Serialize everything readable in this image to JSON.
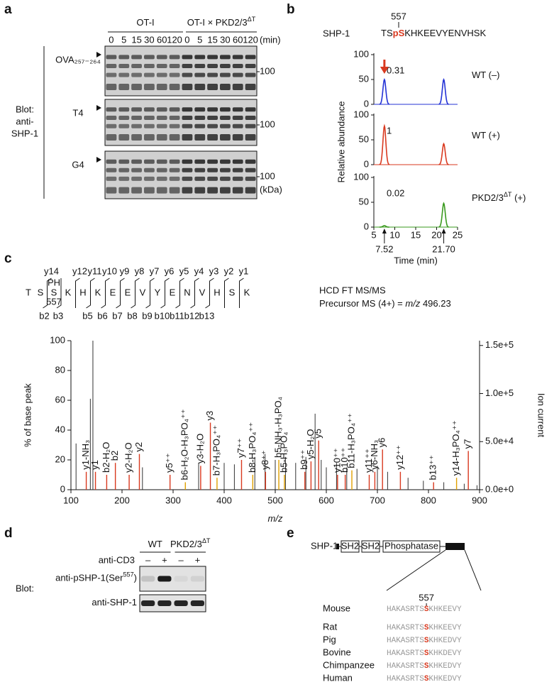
{
  "panel_a": {
    "label": "a",
    "groups": [
      [
        "OT-I"
      ],
      [
        "OT-I × PKD2/3",
        {
          "sup": "ΔT"
        }
      ]
    ],
    "times": [
      0,
      5,
      15,
      30,
      60,
      120
    ],
    "time_unit": "(min)",
    "blot_label": [
      "Blot:",
      "anti-",
      "SHP-1"
    ],
    "peptides": [
      "OVA₂₅₇₋₂₆₄",
      "T4",
      "G4"
    ],
    "marker": 100,
    "marker_unit": "(kDa)"
  },
  "panel_b": {
    "label": "b",
    "site": 557,
    "protein": "SHP-1",
    "sequence": [
      "TS",
      {
        "red": "pS"
      },
      "KHKEEVYENVHSK"
    ],
    "ylabel": "Relative abundance",
    "xlabel": "Time (min)",
    "xlim": [
      5,
      25
    ],
    "xticks": [
      5,
      10,
      15,
      20,
      25
    ],
    "ylim": [
      0,
      100
    ],
    "yticks": [
      0,
      50,
      100
    ],
    "traces": [
      {
        "name": [
          "WT (–)"
        ],
        "color": "#2433d6",
        "ratio": 0.31,
        "peaks": [
          {
            "time": 7.52,
            "height": 50
          },
          {
            "time": 21.7,
            "height": 50
          }
        ]
      },
      {
        "name": [
          "WT (+)"
        ],
        "color": "#d9391f",
        "ratio": 1,
        "peaks": [
          {
            "time": 7.52,
            "height": 78
          },
          {
            "time": 21.7,
            "height": 42
          }
        ]
      },
      {
        "name": [
          "PKD2/3",
          {
            "sup": "ΔT"
          },
          " (+)"
        ],
        "color": "#3a9a1e",
        "ratio": 0.02,
        "peaks": [
          {
            "time": 7.52,
            "height": 3
          },
          {
            "time": 21.7,
            "height": 48
          }
        ]
      }
    ],
    "markers": [
      {
        "value": 7.52,
        "label": "7.52"
      },
      {
        "value": 21.7,
        "label": "21.70"
      }
    ]
  },
  "panel_c": {
    "label": "c",
    "residues": [
      "T",
      "S",
      "S",
      "K",
      "H",
      "K",
      "E",
      "E",
      "V",
      "Y",
      "E",
      "N",
      "V",
      "H",
      "S",
      "K"
    ],
    "phospho_mark": "PH",
    "site": 557,
    "y_ions": [
      null,
      "y14",
      null,
      "y12",
      "y11",
      "y10",
      "y9",
      "y8",
      "y7",
      "y6",
      "y5",
      "y4",
      "y3",
      "y2",
      "y1"
    ],
    "b_ions": [
      null,
      "b2",
      "b3",
      null,
      "b5",
      "b6",
      "b7",
      "b8",
      "b9",
      "b10",
      "b11",
      "b12",
      "b13",
      null,
      null
    ],
    "method": "HCD FT MS/MS",
    "precursor": [
      "Precursor MS (4+) = ",
      {
        "i": "m/z"
      },
      " 496.23"
    ],
    "chart": {
      "type": "bar",
      "xlabel": [
        {
          "i": "m/z"
        }
      ],
      "ylabel": "% of base peak",
      "y2label": "Ion current",
      "xlim": [
        100,
        900
      ],
      "xticks": [
        100,
        200,
        300,
        400,
        500,
        600,
        700,
        800,
        900
      ],
      "ylim": [
        0,
        100
      ],
      "yticks": [
        0,
        20,
        40,
        60,
        80,
        100
      ],
      "y2lim": [
        0,
        155000
      ],
      "y2ticks": [
        {
          "value": 0,
          "label": "0.0e+0"
        },
        {
          "value": 50000,
          "label": "5.0e+4"
        },
        {
          "value": 100000,
          "label": "1.0e+5"
        },
        {
          "value": 150000,
          "label": "1.5e+5"
        }
      ],
      "unlabeled": {
        "color": "#333333",
        "mz": [
          110,
          138,
          143,
          240,
          350,
          400,
          420,
          460,
          480,
          500,
          520,
          540,
          560,
          578,
          590,
          600,
          620,
          640,
          660,
          700,
          720,
          760,
          790,
          830,
          870,
          895
        ],
        "values": [
          31,
          61,
          100,
          15,
          18,
          18,
          17,
          22,
          24,
          20,
          22,
          18,
          22,
          51,
          20,
          15,
          18,
          15,
          14,
          16,
          12,
          8,
          6,
          5,
          4,
          3
        ]
      },
      "ions": [
        {
          "mz": 130,
          "value": 12,
          "label": "y1-NH₃",
          "color": "#d9391f"
        },
        {
          "mz": 148,
          "value": 12,
          "label": "y1",
          "color": "#d9391f"
        },
        {
          "mz": 170,
          "value": 10,
          "label": "b2-H₂O",
          "color": "#d9391f"
        },
        {
          "mz": 187,
          "value": 18,
          "label": "b2",
          "color": "#d9391f"
        },
        {
          "mz": 214,
          "value": 10,
          "label": "y2-H₂O",
          "color": "#d9391f"
        },
        {
          "mz": 234,
          "value": 24,
          "label": "y2",
          "color": "#d9391f"
        },
        {
          "mz": 294,
          "value": 10,
          "label": "y5⁺⁺",
          "color": "#d9391f"
        },
        {
          "mz": 324,
          "value": 5,
          "label": "b6-H₂O-H₃PO₄⁺⁺",
          "color": "#e0a000"
        },
        {
          "mz": 354,
          "value": 16,
          "label": "y3-H₂O",
          "color": "#d9391f"
        },
        {
          "mz": 373,
          "value": 45,
          "label": "y3",
          "color": "#d9391f"
        },
        {
          "mz": 386,
          "value": 8,
          "label": "b7-H₃PO₄⁺⁺",
          "color": "#e0a000"
        },
        {
          "mz": 434,
          "value": 20,
          "label": "y7⁺⁺",
          "color": "#d9391f"
        },
        {
          "mz": 456,
          "value": 10,
          "label": "b8-H₃PO₄⁺⁺",
          "color": "#e0a000"
        },
        {
          "mz": 481,
          "value": 12,
          "label": "y8⁺⁺",
          "color": "#d9391f"
        },
        {
          "mz": 507,
          "value": 20,
          "label": "b5-NH₃-H₃PO₄",
          "color": "#e0a000"
        },
        {
          "mz": 518,
          "value": 10,
          "label": "b5-H₃PO₄",
          "color": "#e0a000"
        },
        {
          "mz": 558,
          "value": 12,
          "label": "b9⁺⁺",
          "color": "#d9391f"
        },
        {
          "mz": 570,
          "value": 19,
          "label": "y5-H₂O",
          "color": "#d9391f"
        },
        {
          "mz": 585,
          "value": 33,
          "label": "y5",
          "color": "#d9391f"
        },
        {
          "mz": 622,
          "value": 10,
          "label": "y10⁺⁺",
          "color": "#d9391f"
        },
        {
          "mz": 637,
          "value": 10,
          "label": "b10⁺⁺",
          "color": "#d9391f"
        },
        {
          "mz": 650,
          "value": 13,
          "label": "b11-H₃PO₄⁺⁺",
          "color": "#e0a000"
        },
        {
          "mz": 684,
          "value": 10,
          "label": "y11⁺⁺",
          "color": "#d9391f"
        },
        {
          "mz": 695,
          "value": 12,
          "label": "y6-NH₃",
          "color": "#d9391f"
        },
        {
          "mz": 710,
          "value": 27,
          "label": "y6",
          "color": "#d9391f"
        },
        {
          "mz": 745,
          "value": 12,
          "label": "y12⁺⁺",
          "color": "#d9391f"
        },
        {
          "mz": 810,
          "value": 5,
          "label": "b13⁺⁺",
          "color": "#d9391f"
        },
        {
          "mz": 855,
          "value": 8,
          "label": "y14-H₃PO₄⁺⁺",
          "color": "#e0a000"
        },
        {
          "mz": 878,
          "value": 26,
          "label": "y7",
          "color": "#d9391f"
        }
      ]
    }
  },
  "panel_d": {
    "label": "d",
    "groups": [
      [
        "WT"
      ],
      [
        "PKD2/3",
        {
          "sup": "ΔT"
        }
      ]
    ],
    "treatment": "anti-CD3",
    "signs": [
      "–",
      "+",
      "–",
      "+"
    ],
    "blot": "Blot:",
    "rows": [
      [
        "anti-pSHP-1(Ser",
        {
          "sup": "557"
        },
        ")"
      ],
      [
        "anti-SHP-1"
      ]
    ]
  },
  "panel_e": {
    "label": "e",
    "protein": "SHP-1",
    "domains": [
      "SH2",
      "SH2",
      "Phosphatase"
    ],
    "site": 557,
    "species": [
      {
        "name": "Mouse",
        "seq": [
          "HAKASRTS",
          {
            "red": "S"
          },
          "KHKEEVY"
        ]
      },
      {
        "name": "Rat",
        "seq": [
          "HAKASRTS",
          {
            "red": "S"
          },
          "KHKEEVY"
        ]
      },
      {
        "name": "Pig",
        "seq": [
          "HAKASRTS",
          {
            "red": "S"
          },
          "KHKEDVY"
        ]
      },
      {
        "name": "Bovine",
        "seq": [
          "HAKASRTS",
          {
            "red": "S"
          },
          "KHKDEVY"
        ]
      },
      {
        "name": "Chimpanzee",
        "seq": [
          "HAKASRTS",
          {
            "red": "S"
          },
          "KHKEDVY"
        ]
      },
      {
        "name": "Human",
        "seq": [
          "HAKASRTS",
          {
            "red": "S"
          },
          "KHKEDVY"
        ]
      }
    ]
  }
}
